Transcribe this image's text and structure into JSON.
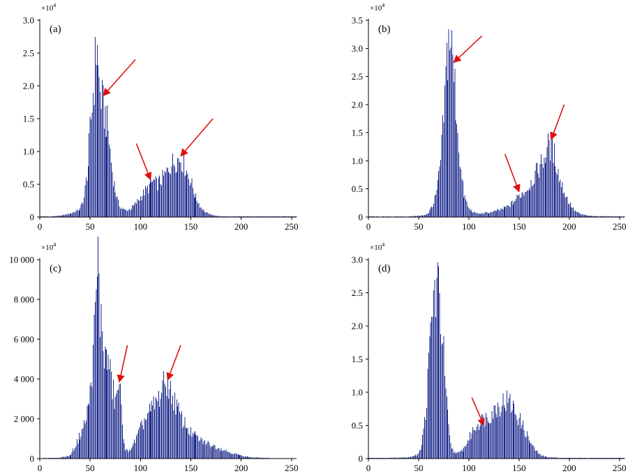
{
  "colors": {
    "bar": "#1c2a8c",
    "arrow": "#e01010",
    "axis": "#000000"
  },
  "chart_data": [
    {
      "type": "bar",
      "panel_label": "(a)",
      "multiplier_label": "×10",
      "multiplier_exp": "4",
      "xlim": [
        0,
        255
      ],
      "ylim": [
        0,
        3.0
      ],
      "xticks": [
        0,
        50,
        100,
        150,
        200,
        250
      ],
      "yticks": [
        0,
        0.5,
        1.0,
        1.5,
        2.0,
        2.5,
        3.0
      ],
      "ytick_labels": [
        "0",
        "0.5",
        "1.0",
        "1.5",
        "2.0",
        "2.5",
        "3.0"
      ],
      "x": [
        0,
        10,
        20,
        30,
        40,
        44,
        48,
        50,
        52,
        54,
        56,
        57,
        58,
        60,
        62,
        64,
        66,
        68,
        70,
        72,
        75,
        78,
        80,
        85,
        90,
        95,
        100,
        105,
        108,
        110,
        113,
        116,
        120,
        125,
        128,
        130,
        134,
        137,
        140,
        143,
        146,
        150,
        155,
        160,
        165,
        170,
        175,
        180,
        200,
        230,
        255
      ],
      "values": [
        0.01,
        0.01,
        0.02,
        0.05,
        0.12,
        0.3,
        0.8,
        1.3,
        1.7,
        2.1,
        2.55,
        2.82,
        2.2,
        1.9,
        1.75,
        1.6,
        1.5,
        1.3,
        1.0,
        0.7,
        0.4,
        0.22,
        0.15,
        0.1,
        0.12,
        0.2,
        0.3,
        0.4,
        0.45,
        0.5,
        0.55,
        0.5,
        0.55,
        0.65,
        0.75,
        0.8,
        0.85,
        0.88,
        0.9,
        0.8,
        0.7,
        0.55,
        0.3,
        0.15,
        0.07,
        0.04,
        0.02,
        0.01,
        0.01,
        0.01,
        0.01
      ],
      "arrows": [
        {
          "from": [
            95,
            2.4
          ],
          "to": [
            63,
            1.85
          ]
        },
        {
          "from": [
            96,
            1.12
          ],
          "to": [
            110,
            0.57
          ]
        },
        {
          "from": [
            172,
            1.5
          ],
          "to": [
            140,
            0.93
          ]
        }
      ]
    },
    {
      "type": "bar",
      "panel_label": "(b)",
      "multiplier_label": "×10",
      "multiplier_exp": "4",
      "xlim": [
        0,
        255
      ],
      "ylim": [
        0,
        3.5
      ],
      "xticks": [
        0,
        50,
        100,
        150,
        200,
        250
      ],
      "yticks": [
        0,
        0.5,
        1.0,
        1.5,
        2.0,
        2.5,
        3.0,
        3.5
      ],
      "ytick_labels": [
        "0",
        "0.5",
        "1.0",
        "1.5",
        "2.0",
        "2.5",
        "3.0",
        "3.5"
      ],
      "x": [
        0,
        20,
        40,
        55,
        60,
        65,
        68,
        70,
        72,
        74,
        76,
        78,
        80,
        82,
        84,
        86,
        88,
        90,
        92,
        95,
        100,
        105,
        110,
        120,
        130,
        140,
        145,
        150,
        155,
        160,
        165,
        170,
        175,
        178,
        180,
        182,
        185,
        188,
        190,
        195,
        200,
        205,
        210,
        220,
        255
      ],
      "values": [
        0.01,
        0.01,
        0.01,
        0.03,
        0.08,
        0.25,
        0.45,
        0.7,
        1.0,
        1.5,
        2.1,
        2.8,
        3.15,
        3.2,
        2.7,
        2.3,
        1.8,
        1.3,
        0.8,
        0.4,
        0.15,
        0.08,
        0.06,
        0.08,
        0.12,
        0.2,
        0.28,
        0.38,
        0.45,
        0.55,
        0.72,
        0.88,
        1.05,
        1.2,
        1.3,
        1.25,
        1.1,
        0.9,
        0.7,
        0.45,
        0.25,
        0.12,
        0.06,
        0.02,
        0.01
      ],
      "arrows": [
        {
          "from": [
            113,
            3.22
          ],
          "to": [
            85,
            2.75
          ]
        },
        {
          "from": [
            136,
            1.12
          ],
          "to": [
            150,
            0.45
          ]
        },
        {
          "from": [
            195,
            2.0
          ],
          "to": [
            182,
            1.38
          ]
        }
      ]
    },
    {
      "type": "bar",
      "panel_label": "(c)",
      "multiplier_label": "×10",
      "multiplier_exp": "4",
      "xlim": [
        0,
        255
      ],
      "ylim": [
        0,
        10000
      ],
      "xticks": [
        0,
        50,
        100,
        150,
        200,
        250
      ],
      "yticks": [
        0,
        2000,
        4000,
        6000,
        8000,
        10000
      ],
      "ytick_labels": [
        "0",
        "2 000",
        "4 000",
        "6 000",
        "8 000",
        "10 000"
      ],
      "x": [
        0,
        20,
        30,
        35,
        40,
        45,
        50,
        53,
        56,
        58,
        60,
        62,
        64,
        66,
        68,
        70,
        72,
        74,
        76,
        78,
        80,
        82,
        85,
        88,
        90,
        95,
        100,
        105,
        110,
        115,
        118,
        120,
        123,
        126,
        128,
        130,
        133,
        136,
        140,
        145,
        150,
        160,
        170,
        180,
        190,
        200,
        210,
        230,
        255
      ],
      "values": [
        20,
        40,
        150,
        600,
        1200,
        1800,
        3200,
        5200,
        8200,
        10000,
        7200,
        6400,
        5400,
        4800,
        5100,
        4200,
        3600,
        3000,
        2900,
        3800,
        3200,
        1600,
        500,
        300,
        500,
        900,
        1500,
        2000,
        2400,
        2800,
        3000,
        3300,
        3600,
        3900,
        3700,
        3300,
        3000,
        2600,
        2100,
        1700,
        1300,
        900,
        700,
        500,
        300,
        150,
        60,
        20,
        10
      ],
      "arrows": [
        {
          "from": [
            87,
            5700
          ],
          "to": [
            79,
            3850
          ]
        },
        {
          "from": [
            140,
            5700
          ],
          "to": [
            127,
            3950
          ]
        }
      ]
    },
    {
      "type": "bar",
      "panel_label": "(d)",
      "multiplier_label": "×10",
      "multiplier_exp": "4",
      "xlim": [
        0,
        255
      ],
      "ylim": [
        0,
        3.0
      ],
      "xticks": [
        0,
        50,
        100,
        150,
        200,
        250
      ],
      "yticks": [
        0,
        0.5,
        1.0,
        1.5,
        2.0,
        2.5,
        3.0
      ],
      "ytick_labels": [
        "0",
        "0.5",
        "1.0",
        "1.5",
        "2.0",
        "2.5",
        "3.0"
      ],
      "x": [
        0,
        20,
        40,
        48,
        52,
        55,
        58,
        60,
        62,
        64,
        66,
        68,
        70,
        72,
        74,
        76,
        78,
        80,
        82,
        85,
        90,
        95,
        100,
        105,
        110,
        115,
        120,
        125,
        130,
        134,
        138,
        142,
        146,
        150,
        155,
        160,
        165,
        170,
        175,
        180,
        190,
        200,
        230,
        255
      ],
      "values": [
        0.01,
        0.01,
        0.02,
        0.05,
        0.15,
        0.4,
        0.9,
        1.4,
        1.9,
        2.3,
        2.5,
        2.58,
        2.5,
        2.2,
        1.8,
        1.3,
        0.8,
        0.45,
        0.2,
        0.1,
        0.08,
        0.15,
        0.3,
        0.45,
        0.55,
        0.6,
        0.65,
        0.72,
        0.8,
        0.85,
        0.87,
        0.82,
        0.72,
        0.6,
        0.45,
        0.28,
        0.15,
        0.07,
        0.03,
        0.02,
        0.01,
        0.01,
        0.01,
        0.01
      ],
      "arrows": [
        {
          "from": [
            103,
            0.92
          ],
          "to": [
            115,
            0.5
          ]
        }
      ]
    }
  ]
}
